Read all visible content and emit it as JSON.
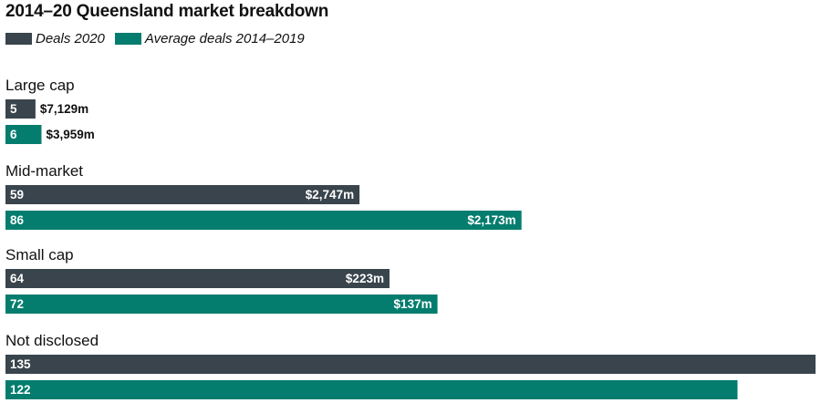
{
  "chart_data": {
    "type": "bar",
    "orientation": "horizontal",
    "title": "2014–20 Queensland market breakdown",
    "categories": [
      "Large cap",
      "Mid-market",
      "Small cap",
      "Not disclosed"
    ],
    "series": [
      {
        "name": "Deals 2020",
        "color": "#39444c",
        "values": [
          5,
          59,
          64,
          135
        ],
        "value_labels": [
          "$7,129m",
          "$2,747m",
          "$223m",
          ""
        ]
      },
      {
        "name": "Average deals 2014–2019",
        "color": "#047d6e",
        "values": [
          6,
          86,
          72,
          122
        ],
        "value_labels": [
          "$3,959m",
          "$2,173m",
          "$137m",
          ""
        ]
      }
    ],
    "xlim": [
      0,
      135
    ],
    "legend_position": "top-left",
    "grid": false
  }
}
